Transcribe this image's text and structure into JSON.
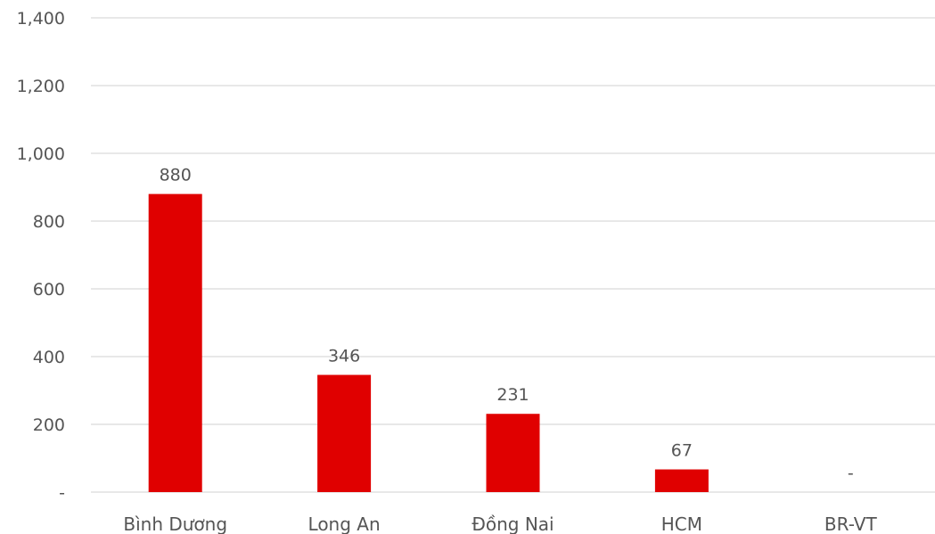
{
  "chart_data": {
    "type": "bar",
    "categories": [
      "Bình Dương",
      "Long An",
      "Đồng Nai",
      "HCM",
      "BR-VT"
    ],
    "values": [
      880,
      346,
      231,
      67,
      0
    ],
    "data_labels": [
      "880",
      "346",
      "231",
      "67",
      "-"
    ],
    "ylim": [
      0,
      1400
    ],
    "yticks": [
      0,
      200,
      400,
      600,
      800,
      1000,
      1200,
      1400
    ],
    "ytick_labels": [
      "-",
      "200",
      "400",
      "600",
      "800",
      "1,000",
      "1,200",
      "1,400"
    ],
    "title": "",
    "xlabel": "",
    "ylabel": "",
    "grid": true,
    "legend": "none",
    "bar_color": "#e00000"
  }
}
